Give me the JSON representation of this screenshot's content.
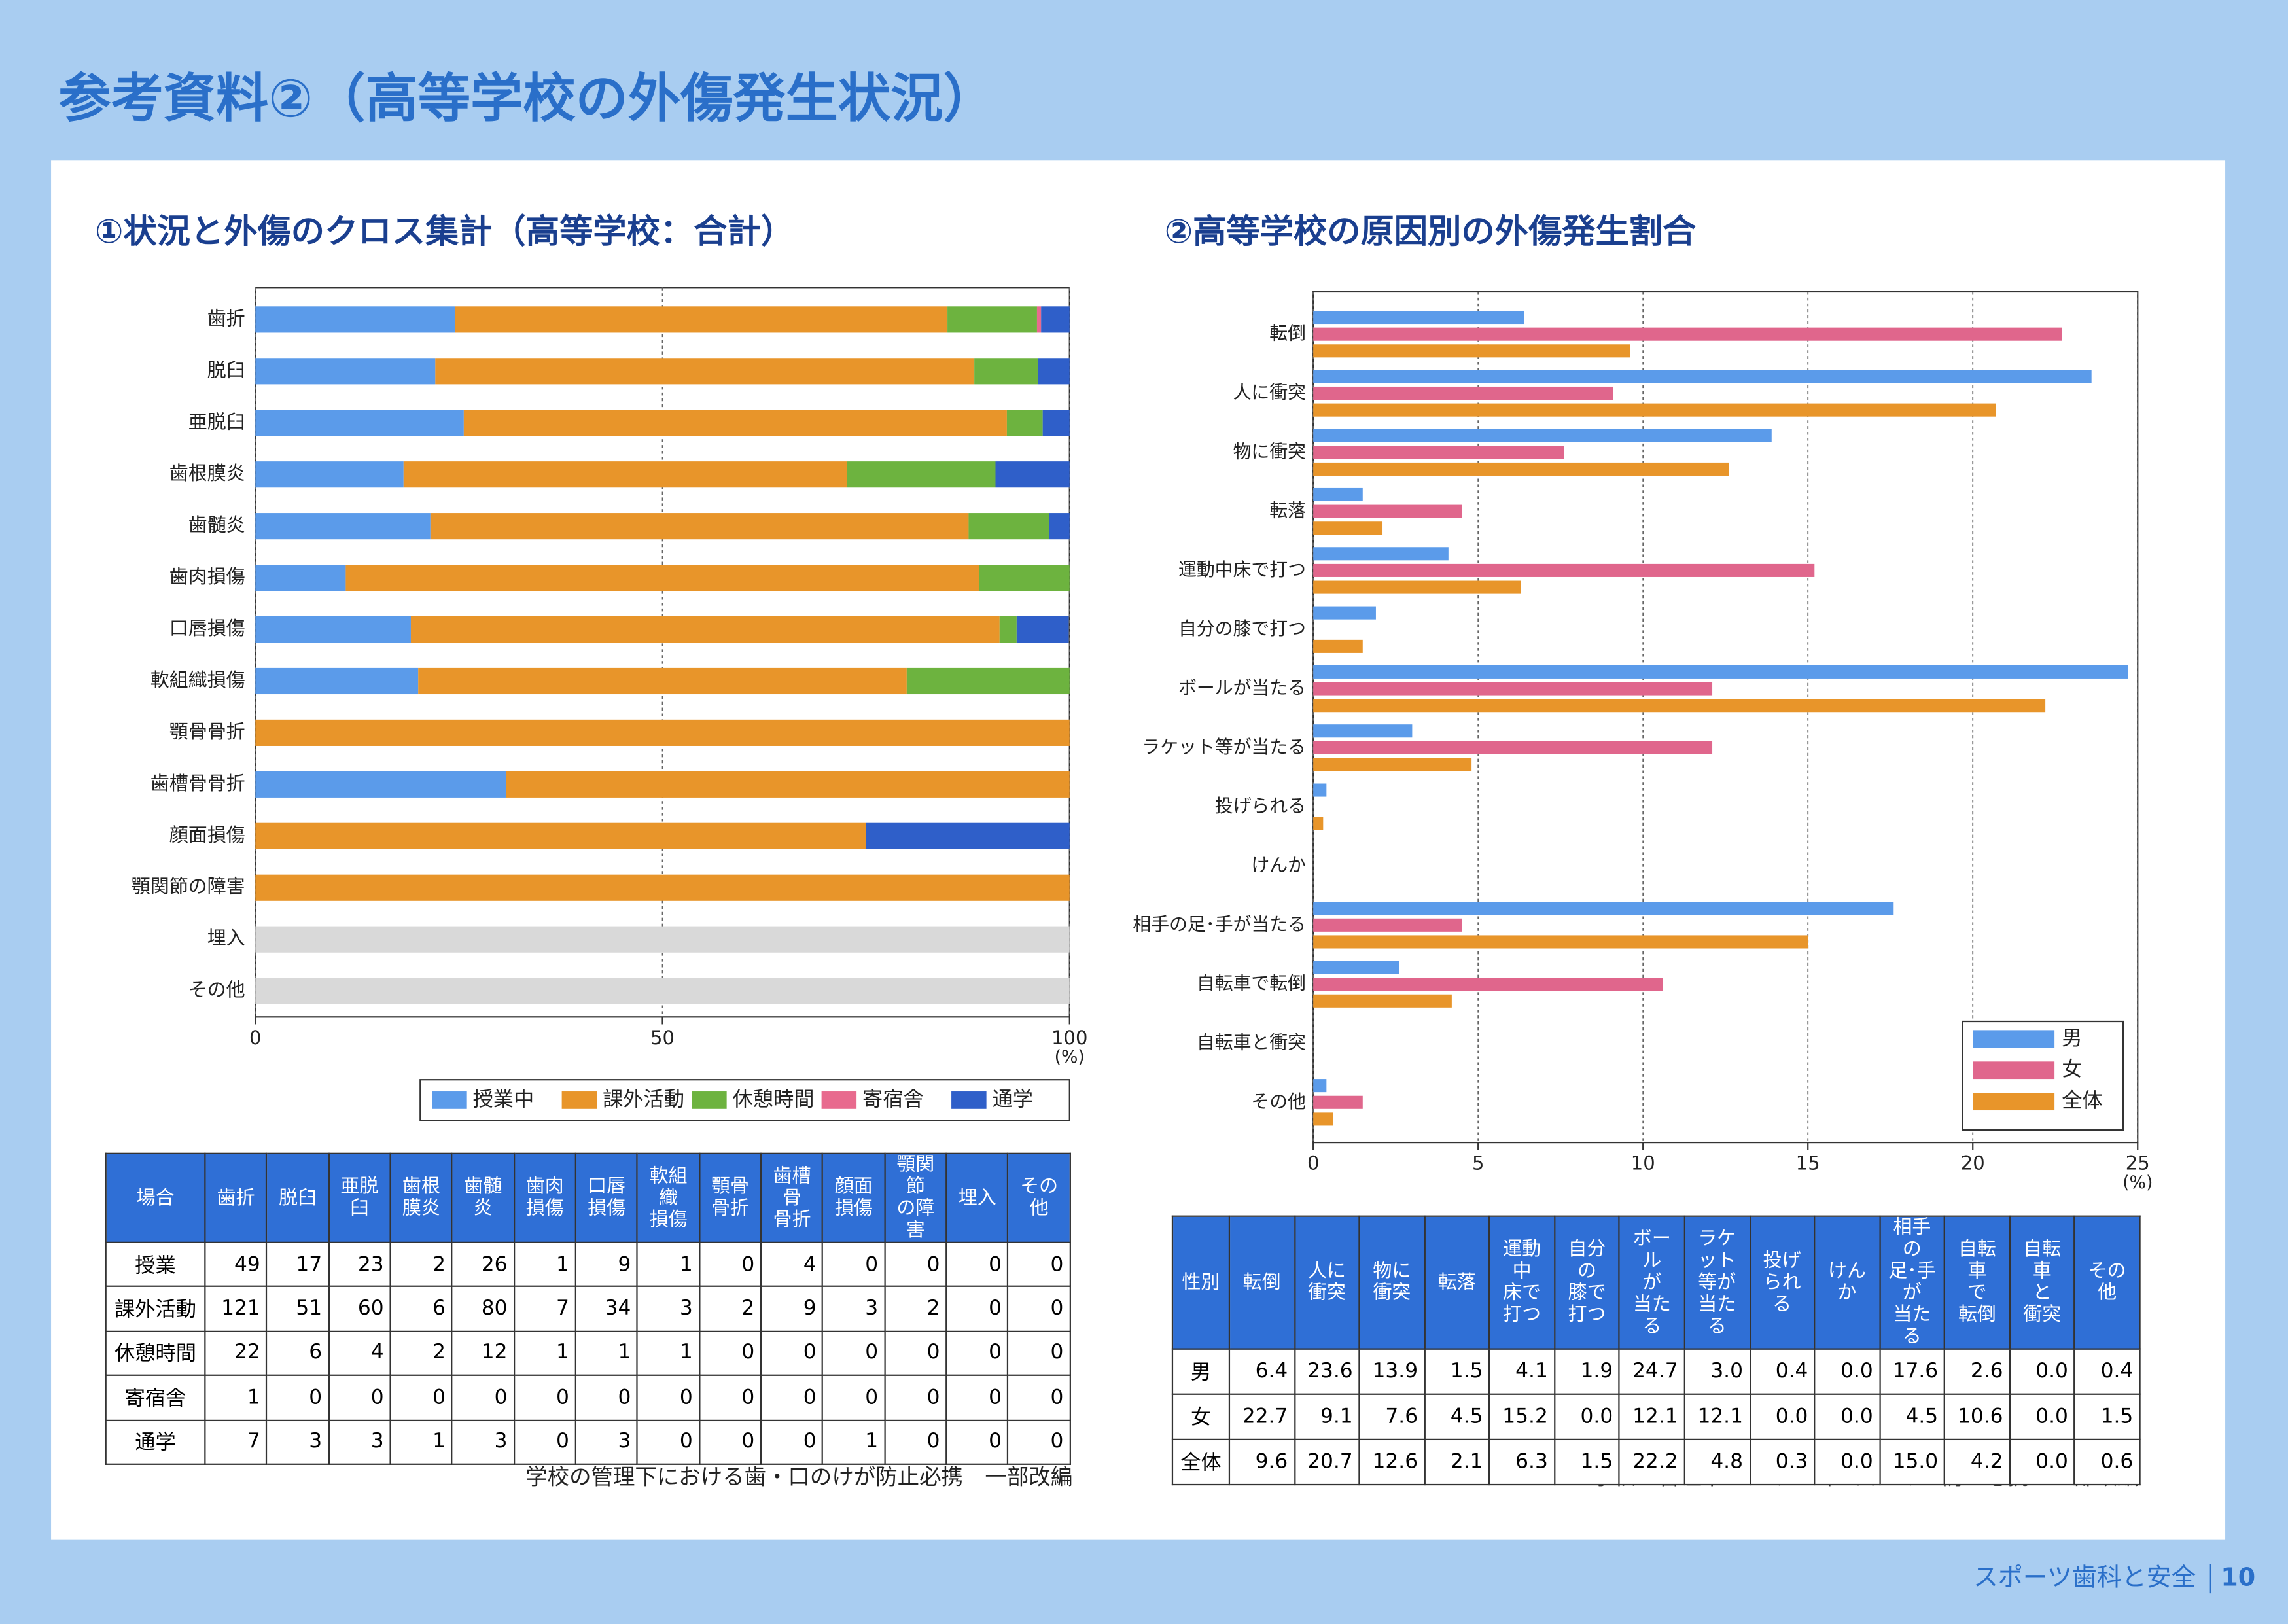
{
  "header": {
    "title": "参考資料②（高等学校の外傷発生状況）"
  },
  "chart_data": [
    {
      "type": "stacked-bar",
      "title": "①状況と外傷のクロス集計（高等学校：合計）",
      "categories": [
        "歯折",
        "脱臼",
        "亜脱臼",
        "歯根膜炎",
        "歯髄炎",
        "歯肉損傷",
        "口唇損傷",
        "軟組織損傷",
        "顎骨骨折",
        "歯槽骨骨折",
        "顔面損傷",
        "顎関節の障害",
        "埋入",
        "その他"
      ],
      "series": [
        {
          "name": "授業中",
          "color": "#5b9bea",
          "values": [
            24.5,
            22.1,
            25.6,
            18.2,
            21.5,
            11.1,
            19.1,
            20,
            0,
            30.8,
            0,
            0,
            0,
            0
          ]
        },
        {
          "name": "課外活動",
          "color": "#e8952a",
          "values": [
            60.5,
            66.2,
            66.7,
            54.5,
            66.1,
            77.8,
            72.3,
            60,
            100,
            69.2,
            75,
            100,
            0,
            0
          ]
        },
        {
          "name": "休憩時間",
          "color": "#6db33f",
          "values": [
            11,
            7.8,
            4.4,
            18.2,
            9.9,
            11.1,
            2.1,
            20,
            0,
            0,
            0,
            0,
            0,
            0
          ]
        },
        {
          "name": "寄宿舎",
          "color": "#e86a8e",
          "values": [
            0.5,
            0,
            0,
            0,
            0,
            0,
            0,
            0,
            0,
            0,
            0,
            0,
            0,
            0
          ]
        },
        {
          "name": "通学",
          "color": "#2f5fc9",
          "values": [
            3.5,
            3.9,
            3.3,
            9.1,
            2.5,
            0,
            6.4,
            0,
            0,
            0,
            25,
            0,
            0,
            0
          ]
        }
      ],
      "xlim": [
        0,
        100
      ],
      "xticks": [
        0,
        50,
        100
      ],
      "xlabel": "(%)",
      "grid": true,
      "legend": "bottom"
    },
    {
      "type": "grouped-bar",
      "title": "②高等学校の原因別の外傷発生割合",
      "categories": [
        "転倒",
        "人に衝突",
        "物に衝突",
        "転落",
        "運動中床で打つ",
        "自分の膝で打つ",
        "ボールが当たる",
        "ラケット等が当たる",
        "投げられる",
        "けんか",
        "相手の足･手が当たる",
        "自転車で転倒",
        "自転車と衝突",
        "その他"
      ],
      "series": [
        {
          "name": "男",
          "color": "#5b9bea",
          "values": [
            6.4,
            23.6,
            13.9,
            1.5,
            4.1,
            1.9,
            24.7,
            3.0,
            0.4,
            0.0,
            17.6,
            2.6,
            0.0,
            0.4
          ]
        },
        {
          "name": "女",
          "color": "#e0668c",
          "values": [
            22.7,
            9.1,
            7.6,
            4.5,
            15.2,
            0.0,
            12.1,
            12.1,
            0.0,
            0.0,
            4.5,
            10.6,
            0.0,
            1.5
          ]
        },
        {
          "name": "全体",
          "color": "#e8952a",
          "values": [
            9.6,
            20.7,
            12.6,
            2.1,
            6.3,
            1.5,
            22.2,
            4.8,
            0.3,
            0.0,
            15.0,
            4.2,
            0.0,
            0.6
          ]
        }
      ],
      "xlim": [
        0,
        25
      ],
      "xticks": [
        0,
        5,
        10,
        15,
        20,
        25
      ],
      "xlabel": "(%)",
      "grid": true,
      "legend": "lower right"
    }
  ],
  "tables": [
    {
      "header": [
        "場合",
        "歯折",
        "脱臼",
        "亜脱臼",
        "歯根\n膜炎",
        "歯髄炎",
        "歯肉\n損傷",
        "口唇\n損傷",
        "軟組織\n損傷",
        "顎骨\n骨折",
        "歯槽骨\n骨折",
        "顔面\n損傷",
        "顎関節\nの障害",
        "埋入",
        "その他"
      ],
      "rows": [
        [
          "授業",
          "49",
          "17",
          "23",
          "2",
          "26",
          "1",
          "9",
          "1",
          "0",
          "4",
          "0",
          "0",
          "0",
          "0"
        ],
        [
          "課外活動",
          "121",
          "51",
          "60",
          "6",
          "80",
          "7",
          "34",
          "3",
          "2",
          "9",
          "3",
          "2",
          "0",
          "0"
        ],
        [
          "休憩時間",
          "22",
          "6",
          "4",
          "2",
          "12",
          "1",
          "1",
          "1",
          "0",
          "0",
          "0",
          "0",
          "0",
          "0"
        ],
        [
          "寄宿舎",
          "1",
          "0",
          "0",
          "0",
          "0",
          "0",
          "0",
          "0",
          "0",
          "0",
          "0",
          "0",
          "0",
          "0"
        ],
        [
          "通学",
          "7",
          "3",
          "3",
          "1",
          "3",
          "0",
          "3",
          "0",
          "0",
          "0",
          "1",
          "0",
          "0",
          "0"
        ]
      ]
    },
    {
      "header": [
        "性別",
        "転倒",
        "人に\n衝突",
        "物に\n衝突",
        "転落",
        "運動中\n床で\n打つ",
        "自分の\n膝で\n打つ",
        "ボール\nが\n当たる",
        "ラケット\n等が\n当たる",
        "投げ\nられる",
        "けんか",
        "相手の\n足･手が\n当たる",
        "自転車\nで\n転倒",
        "自転車\nと\n衝突",
        "その他"
      ],
      "rows": [
        [
          "男",
          "6.4",
          "23.6",
          "13.9",
          "1.5",
          "4.1",
          "1.9",
          "24.7",
          "3.0",
          "0.4",
          "0.0",
          "17.6",
          "2.6",
          "0.0",
          "0.4"
        ],
        [
          "女",
          "22.7",
          "9.1",
          "7.6",
          "4.5",
          "15.2",
          "0.0",
          "12.1",
          "12.1",
          "0.0",
          "0.0",
          "4.5",
          "10.6",
          "0.0",
          "1.5"
        ],
        [
          "全体",
          "9.6",
          "20.7",
          "12.6",
          "2.1",
          "6.3",
          "1.5",
          "22.2",
          "4.8",
          "0.3",
          "0.0",
          "15.0",
          "4.2",
          "0.0",
          "0.6"
        ]
      ]
    }
  ],
  "notes": [
    "学校の管理下における歯・口のけが防止必携　一部改編",
    "学校の管理下における歯・口のけが防止必携　一部改編"
  ],
  "footer": {
    "text": "スポーツ歯科と安全",
    "page": "10"
  }
}
